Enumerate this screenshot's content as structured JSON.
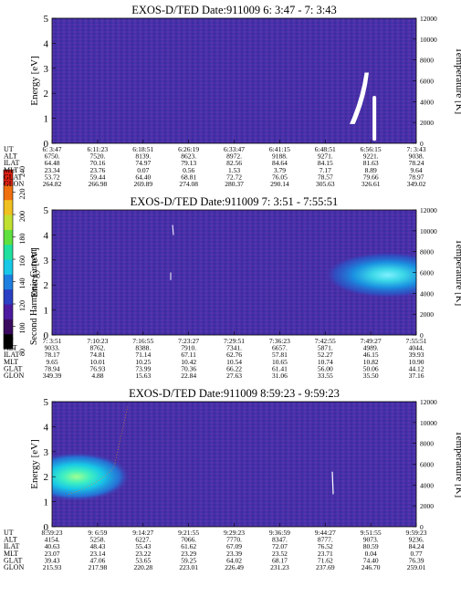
{
  "colorbar": {
    "label": "Second Harmonic Current",
    "ticks": [
      "80",
      "100",
      "120",
      "140",
      "160",
      "180",
      "200",
      "220",
      "240"
    ],
    "colors": [
      "#000000",
      "#3a0a5e",
      "#4b1aa0",
      "#2a3fc4",
      "#1e7fe0",
      "#18c8e6",
      "#20e0a0",
      "#60e040",
      "#c0e030",
      "#f0c020",
      "#f07010",
      "#e02010"
    ]
  },
  "panels": [
    {
      "title": "EXOS-D/TED   Date:911009  6: 3:47 - 7: 3:43",
      "ylabel": "Energy [eV]",
      "y2label": "Temperature [K]",
      "yticks": [
        "0",
        "1",
        "2",
        "3",
        "4",
        "5"
      ],
      "y2ticks": [
        "0",
        "2000",
        "4000",
        "6000",
        "8000",
        "10000",
        "12000"
      ],
      "rows": [
        {
          "label": "UT",
          "values": [
            "6: 3:47",
            "6:11:23",
            "6:18:51",
            "6:26:19",
            "6:33:47",
            "6:41:15",
            "6:48:51",
            "6:56:15",
            "7: 3:43"
          ]
        },
        {
          "label": "ALT",
          "values": [
            "6750.",
            "7520.",
            "8139.",
            "8623.",
            "8972.",
            "9188.",
            "9271.",
            "9221.",
            "9038."
          ]
        },
        {
          "label": "ILAT",
          "values": [
            "64.48",
            "70.16",
            "74.97",
            "79.13",
            "82.56",
            "84.64",
            "84.15",
            "81.63",
            "78.24"
          ]
        },
        {
          "label": "MLT",
          "values": [
            "23.34",
            "23.76",
            "0.07",
            "0.56",
            "1.53",
            "3.79",
            "7.17",
            "8.89",
            "9.64"
          ]
        },
        {
          "label": "GLAT",
          "values": [
            "53.72",
            "59.44",
            "64.40",
            "68.81",
            "72.72",
            "76.05",
            "78.57",
            "79.66",
            "78.97"
          ]
        },
        {
          "label": "GLON",
          "values": [
            "264.82",
            "266.98",
            "269.89",
            "274.08",
            "280.37",
            "290.14",
            "305.63",
            "326.61",
            "349.02"
          ]
        }
      ]
    },
    {
      "title": "EXOS-D/TED   Date:911009  7: 3:51 - 7:55:51",
      "ylabel": "Energy [eV]",
      "y2label": "Temperature [K]",
      "yticks": [
        "0",
        "1",
        "2",
        "3",
        "4",
        "5"
      ],
      "y2ticks": [
        "0",
        "2000",
        "4000",
        "6000",
        "8000",
        "10000",
        "12000"
      ],
      "rows": [
        {
          "label": "UT",
          "values": [
            "7: 3:51",
            "7:10:23",
            "7:16:55",
            "7:23:27",
            "7:29:51",
            "7:36:23",
            "7:42:55",
            "7:49:27",
            "7:55:51"
          ]
        },
        {
          "label": "ALT",
          "values": [
            "9033.",
            "8762.",
            "8388.",
            "7910.",
            "7341.",
            "6657.",
            "5871.",
            "4989.",
            "4044."
          ]
        },
        {
          "label": "ILAT",
          "values": [
            "78.17",
            "74.81",
            "71.14",
            "67.11",
            "62.76",
            "57.81",
            "52.27",
            "46.15",
            "39.93"
          ]
        },
        {
          "label": "MLT",
          "values": [
            "9.65",
            "10.01",
            "10.25",
            "10.42",
            "10.54",
            "10.65",
            "10.74",
            "10.82",
            "10.90"
          ]
        },
        {
          "label": "GLAT",
          "values": [
            "78.94",
            "76.93",
            "73.99",
            "70.36",
            "66.22",
            "61.41",
            "56.00",
            "50.06",
            "44.12"
          ]
        },
        {
          "label": "GLON",
          "values": [
            "349.39",
            "4.88",
            "15.63",
            "22.84",
            "27.63",
            "31.06",
            "33.55",
            "35.50",
            "37.16"
          ]
        }
      ]
    },
    {
      "title": "EXOS-D/TED   Date:911009  8:59:23 - 9:59:23",
      "ylabel": "Energy [eV]",
      "y2label": "Temperature [K]",
      "yticks": [
        "0",
        "1",
        "2",
        "3",
        "4",
        "5"
      ],
      "y2ticks": [
        "0",
        "2000",
        "4000",
        "6000",
        "8000",
        "10000",
        "12000"
      ],
      "rows": [
        {
          "label": "UT",
          "values": [
            "8:59:23",
            "9: 6:59",
            "9:14:27",
            "9:21:55",
            "9:29:23",
            "9:36:59",
            "9:44:27",
            "9:51:55",
            "9:59:23"
          ]
        },
        {
          "label": "ALT",
          "values": [
            "4154.",
            "5258.",
            "6227.",
            "7066.",
            "7770.",
            "8347.",
            "8777.",
            "9073.",
            "9236."
          ]
        },
        {
          "label": "ILAT",
          "values": [
            "40.63",
            "48.43",
            "55.43",
            "61.62",
            "67.09",
            "72.07",
            "76.52",
            "80.59",
            "84.24"
          ]
        },
        {
          "label": "MLT",
          "values": [
            "23.07",
            "23.14",
            "23.22",
            "23.29",
            "23.39",
            "23.52",
            "23.71",
            "0.04",
            "0.77"
          ]
        },
        {
          "label": "GLAT",
          "values": [
            "39.43",
            "47.06",
            "53.65",
            "59.25",
            "64.02",
            "68.17",
            "71.62",
            "74.40",
            "76.39"
          ]
        },
        {
          "label": "GLON",
          "values": [
            "215.93",
            "217.98",
            "220.28",
            "223.01",
            "226.49",
            "231.23",
            "237.69",
            "246.70",
            "259.01"
          ]
        }
      ]
    }
  ],
  "chart_data": [
    {
      "type": "heatmap",
      "title": "EXOS-D/TED   Date:911009  6: 3:47 - 7: 3:43",
      "ylabel": "Energy [eV]",
      "y2label": "Temperature [K]",
      "ylim": [
        0,
        5
      ],
      "y2lim": [
        0,
        12000
      ],
      "x": [
        "6: 3:47",
        "6:11:23",
        "6:18:51",
        "6:26:19",
        "6:33:47",
        "6:41:15",
        "6:48:51",
        "6:56:15",
        "7: 3:43"
      ],
      "colorbar_range": [
        80,
        240
      ],
      "background_level": 105,
      "features": [
        {
          "x_fraction": [
            0.82,
            0.86
          ],
          "energy_eV": [
            0.8,
            2.8
          ],
          "level": "saturated (white)"
        },
        {
          "x_fraction": [
            0.88,
            0.89
          ],
          "energy_eV": [
            0.1,
            1.9
          ],
          "level": "saturated (white)"
        }
      ]
    },
    {
      "type": "heatmap",
      "title": "EXOS-D/TED   Date:911009  7: 3:51 - 7:55:51",
      "ylabel": "Energy [eV]",
      "y2label": "Temperature [K]",
      "ylim": [
        0,
        5
      ],
      "y2lim": [
        0,
        12000
      ],
      "x": [
        "7: 3:51",
        "7:10:23",
        "7:16:55",
        "7:23:27",
        "7:29:51",
        "7:36:23",
        "7:42:55",
        "7:49:27",
        "7:55:51"
      ],
      "colorbar_range": [
        80,
        240
      ],
      "background_level": 105,
      "features": [
        {
          "x_fraction": [
            0.72,
            1.0
          ],
          "energy_eV": [
            1.6,
            3.1
          ],
          "peak_energy_eV": 2.4,
          "peak_level": 175
        }
      ]
    },
    {
      "type": "heatmap",
      "title": "EXOS-D/TED   Date:911009  8:59:23 - 9:59:23",
      "ylabel": "Energy [eV]",
      "y2label": "Temperature [K]",
      "ylim": [
        0,
        5
      ],
      "y2lim": [
        0,
        12000
      ],
      "x": [
        "8:59:23",
        "9: 6:59",
        "9:14:27",
        "9:21:55",
        "9:29:23",
        "9:36:59",
        "9:44:27",
        "9:51:55",
        "9:59:23"
      ],
      "colorbar_range": [
        80,
        240
      ],
      "background_level": 105,
      "features": [
        {
          "x_fraction": [
            0.0,
            0.24
          ],
          "energy_eV": [
            1.2,
            2.8
          ],
          "peak_energy_eV": 2.0,
          "peak_level": 185
        }
      ]
    }
  ]
}
